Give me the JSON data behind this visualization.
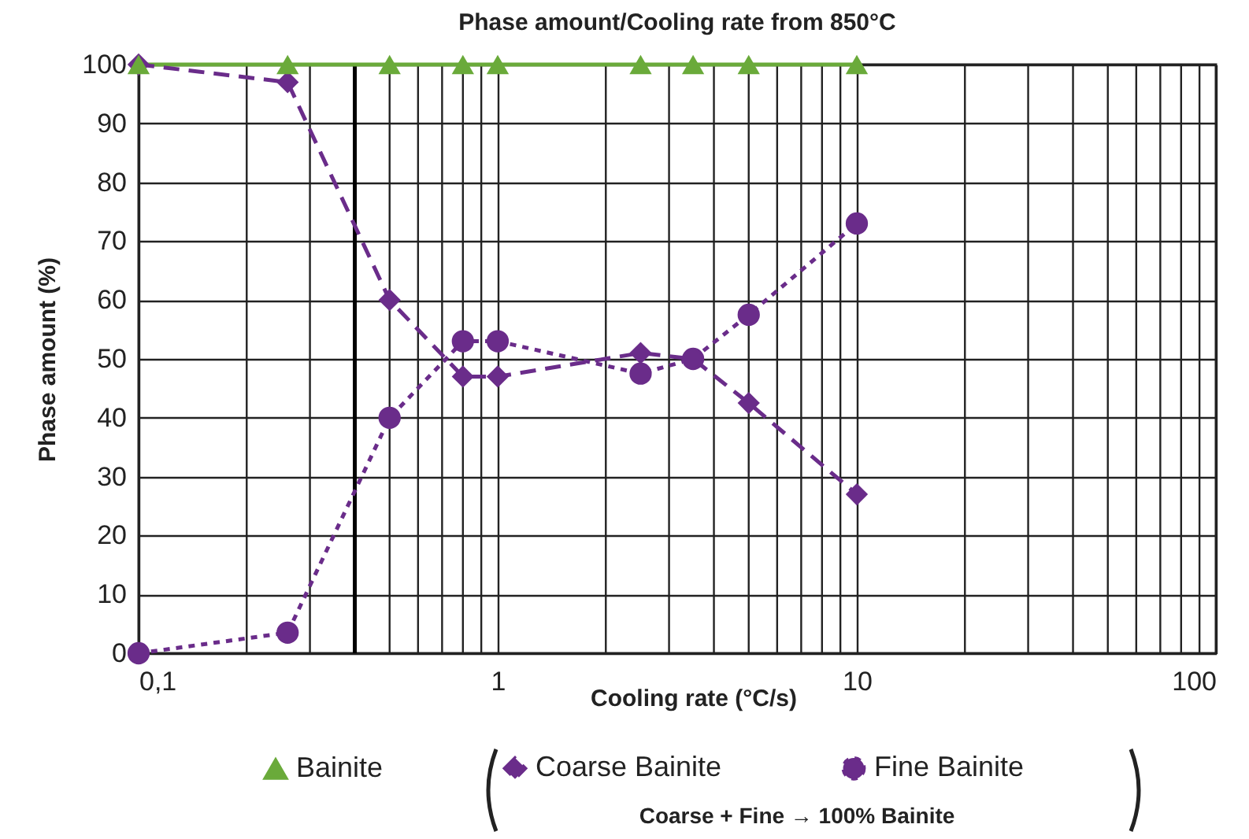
{
  "chart_data": {
    "type": "line",
    "title": "Phase amount/Cooling rate from 850°C",
    "xlabel": "Cooling rate (°C/s)",
    "ylabel": "Phase amount (%)",
    "log": "x",
    "grid": true,
    "legend": "bottom",
    "xlim": [
      0.1,
      100
    ],
    "xticks": [
      {
        "value": 0.1,
        "label": "0,1"
      },
      1,
      10,
      100
    ],
    "ylim": [
      0,
      100
    ],
    "yticks": [
      0,
      10,
      20,
      30,
      40,
      50,
      60,
      70,
      80,
      90,
      100
    ],
    "x": [
      0.1,
      0.26,
      0.5,
      0.8,
      1,
      2.5,
      3.5,
      5,
      10
    ],
    "series": [
      {
        "name": "Bainite",
        "color": "#6aaa3a",
        "marker": "triangle",
        "line_style": "solid",
        "values": [
          100,
          100,
          100,
          100,
          100,
          100,
          100,
          100,
          100
        ]
      },
      {
        "name": "Coarse Bainite",
        "color": "#6a2c8a",
        "marker": "diamond",
        "line_style": "dashed",
        "values": [
          100,
          97,
          60,
          47,
          47,
          51,
          50,
          42.5,
          27
        ]
      },
      {
        "name": "Fine Bainite",
        "color": "#6a2c8a",
        "marker": "circle",
        "line_style": "dotted",
        "values": [
          0,
          3.5,
          40,
          53,
          53,
          47.5,
          50,
          57.5,
          73
        ]
      }
    ],
    "ref_lines": [
      {
        "axis": "x",
        "value": 0.4,
        "color": "#000000"
      }
    ],
    "annotations": [
      "Coarse + Fine → 100% Bainite"
    ]
  }
}
